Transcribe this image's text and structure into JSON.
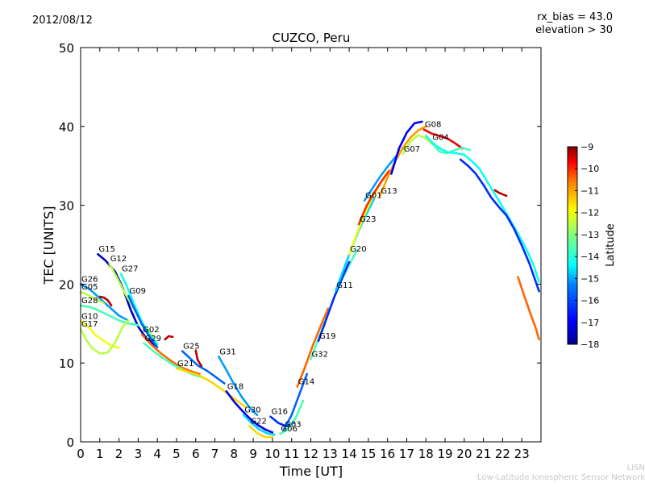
{
  "header": {
    "date": "2012/08/12",
    "rx_bias": "rx_bias = 43.0",
    "elevation": "elevation > 30"
  },
  "watermark": {
    "line1": "LISN",
    "line2": "Low-Latitude Ionospheric Sensor Network"
  },
  "chart_data": {
    "type": "scatter",
    "title": "CUZCO, Peru",
    "xlabel": "Time [UT]",
    "ylabel": "TEC [UNITS]",
    "xlim": [
      0,
      24
    ],
    "ylim": [
      0,
      50
    ],
    "xticks": [
      0,
      1,
      2,
      3,
      4,
      5,
      6,
      7,
      8,
      9,
      10,
      11,
      12,
      13,
      14,
      15,
      16,
      17,
      18,
      19,
      20,
      21,
      22,
      23
    ],
    "yticks": [
      0,
      10,
      20,
      30,
      40,
      50
    ],
    "colorbar": {
      "label": "Latitude",
      "range": [
        -18,
        -9
      ],
      "ticks": [
        -9,
        -10,
        -11,
        -12,
        -13,
        -14,
        -15,
        -16,
        -17,
        -18
      ],
      "colormap": [
        "#00008f",
        "#0000ff",
        "#0080ff",
        "#00ffff",
        "#80ff80",
        "#ffff00",
        "#ff8000",
        "#ff0000",
        "#800000"
      ]
    },
    "series": [
      {
        "name": "G15",
        "lat": -17.5,
        "x": [
          0.9,
          1.3,
          1.8,
          2.2,
          2.6,
          3.0,
          3.4,
          3.9
        ],
        "y": [
          23.8,
          23.0,
          21.6,
          19.5,
          16.8,
          14.6,
          13.2,
          12.2
        ]
      },
      {
        "name": "G12",
        "lat": -13.0,
        "x": [
          1.5,
          1.9,
          2.3,
          2.8,
          3.3,
          3.8
        ],
        "y": [
          22.6,
          20.8,
          18.9,
          16.8,
          14.8,
          13.3
        ]
      },
      {
        "name": "G27",
        "lat": -14.5,
        "x": [
          2.1,
          2.4,
          2.8,
          3.2,
          3.6,
          4.0
        ],
        "y": [
          21.3,
          19.8,
          17.4,
          15.2,
          13.6,
          12.4
        ]
      },
      {
        "name": "G09",
        "lat": -16.0,
        "x": [
          2.5,
          2.8,
          3.2,
          3.6,
          4.0
        ],
        "y": [
          18.5,
          16.9,
          14.9,
          13.3,
          12.0
        ]
      },
      {
        "name": "G26",
        "lat": -15.5,
        "x": [
          0.0,
          0.5,
          1.0,
          1.5,
          2.0,
          2.4
        ],
        "y": [
          20.0,
          19.3,
          18.2,
          17.1,
          16.0,
          15.5
        ]
      },
      {
        "name": "G05",
        "lat": -13.0,
        "x": [
          0.0,
          0.4,
          0.8,
          1.2
        ],
        "y": [
          19.0,
          18.6,
          18.1,
          17.6
        ]
      },
      {
        "name": "G28",
        "lat": -14.0,
        "x": [
          0.0,
          0.5,
          1.0,
          1.5,
          2.0,
          2.5,
          3.0
        ],
        "y": [
          17.3,
          17.1,
          16.6,
          16.0,
          15.4,
          15.0,
          14.8
        ]
      },
      {
        "name": "G10",
        "lat": -12.5,
        "x": [
          0.0,
          0.4,
          0.8,
          1.2,
          1.6,
          2.0
        ],
        "y": [
          15.3,
          14.6,
          13.5,
          12.8,
          12.2,
          11.9
        ]
      },
      {
        "name": "G17",
        "lat": -13.0,
        "x": [
          0.0,
          0.3,
          0.6,
          1.0,
          1.4,
          1.8,
          2.2,
          2.5
        ],
        "y": [
          14.3,
          12.9,
          11.9,
          11.2,
          11.3,
          12.6,
          14.6,
          15.4
        ]
      },
      {
        "name": "G02",
        "lat": -11.0,
        "x": [
          3.2,
          3.7,
          4.2,
          4.7,
          5.2,
          5.7,
          6.2
        ],
        "y": [
          13.6,
          12.3,
          11.2,
          10.3,
          9.5,
          9.0,
          8.6
        ]
      },
      {
        "name": "G29",
        "lat": -14.0,
        "x": [
          3.3,
          3.8,
          4.3,
          4.8,
          5.3,
          5.8,
          6.3
        ],
        "y": [
          12.5,
          11.5,
          10.6,
          9.8,
          9.2,
          8.6,
          8.2
        ]
      },
      {
        "name": "G25",
        "lat": -16.0,
        "x": [
          5.3,
          5.7,
          6.1,
          6.6,
          7.0,
          7.5
        ],
        "y": [
          11.5,
          10.6,
          9.7,
          9.0,
          8.3,
          7.4
        ]
      },
      {
        "name": "G21",
        "lat": -12.0,
        "x": [
          5.0,
          5.6,
          6.2,
          6.8,
          7.4,
          8.0,
          8.6
        ],
        "y": [
          9.3,
          8.9,
          8.4,
          7.6,
          6.6,
          5.5,
          4.4
        ]
      },
      {
        "name": "G31",
        "lat": -15.5,
        "x": [
          7.2,
          7.6,
          8.0,
          8.4,
          8.8,
          9.2
        ],
        "y": [
          10.8,
          9.1,
          7.3,
          5.7,
          4.4,
          3.4
        ]
      },
      {
        "name": "G18",
        "lat": -17.0,
        "x": [
          7.6,
          8.0,
          8.4,
          8.8,
          9.2,
          9.6,
          10.0
        ],
        "y": [
          6.4,
          5.1,
          4.0,
          3.0,
          2.2,
          1.6,
          1.2
        ]
      },
      {
        "name": "G30",
        "lat": -15.0,
        "x": [
          8.5,
          8.9,
          9.3,
          9.7,
          10.1
        ],
        "y": [
          3.4,
          2.4,
          1.6,
          1.1,
          0.9
        ]
      },
      {
        "name": "G22",
        "lat": -12.0,
        "x": [
          8.8,
          9.2,
          9.6,
          10.0
        ],
        "y": [
          2.0,
          1.1,
          0.6,
          0.6
        ]
      },
      {
        "name": "G16",
        "lat": -16.5,
        "x": [
          9.9,
          10.3,
          10.7,
          11.1
        ],
        "y": [
          3.2,
          2.4,
          2.0,
          2.4
        ]
      },
      {
        "name": "G06",
        "lat": -14.0,
        "x": [
          10.4,
          10.8,
          11.2,
          11.6
        ],
        "y": [
          1.0,
          1.6,
          3.0,
          5.2
        ]
      },
      {
        "name": "G03",
        "lat": -16.0,
        "x": [
          10.6,
          11.0,
          11.4,
          11.8
        ],
        "y": [
          1.6,
          3.4,
          6.0,
          8.6
        ]
      },
      {
        "name": "G14",
        "lat": -11.0,
        "x": [
          11.3,
          11.7,
          12.1,
          12.5,
          12.9
        ],
        "y": [
          7.0,
          9.5,
          12.2,
          14.6,
          16.9
        ]
      },
      {
        "name": "G32",
        "lat": -14.0,
        "x": [
          12.0,
          12.4,
          12.8,
          13.2,
          13.6,
          14.0,
          14.4
        ],
        "y": [
          10.5,
          13.1,
          15.6,
          18.2,
          20.5,
          22.4,
          24.3
        ]
      },
      {
        "name": "G19",
        "lat": -16.5,
        "x": [
          12.4,
          12.8,
          13.2,
          13.6,
          14.0
        ],
        "y": [
          12.8,
          15.5,
          18.2,
          20.6,
          22.8
        ]
      },
      {
        "name": "G11",
        "lat": -15.0,
        "x": [
          13.3,
          13.7,
          14.1,
          14.5,
          14.9,
          15.3
        ],
        "y": [
          19.2,
          21.8,
          24.4,
          26.8,
          28.9,
          30.8
        ]
      },
      {
        "name": "G20",
        "lat": -12.5,
        "x": [
          14.0,
          14.4,
          14.8,
          15.2,
          15.6,
          16.0
        ],
        "y": [
          23.8,
          26.4,
          28.8,
          30.9,
          32.7,
          34.3
        ]
      },
      {
        "name": "G23",
        "lat": -10.5,
        "x": [
          14.5,
          14.9,
          15.3,
          15.7,
          16.1
        ],
        "y": [
          27.6,
          29.9,
          31.6,
          33.1,
          34.4
        ]
      },
      {
        "name": "G01",
        "lat": -15.5,
        "x": [
          14.8,
          15.2,
          15.6,
          16.0,
          16.4,
          16.8
        ],
        "y": [
          30.6,
          32.1,
          33.6,
          34.9,
          36.1,
          37.2
        ]
      },
      {
        "name": "G13",
        "lat": -11.5,
        "x": [
          15.6,
          16.0,
          16.4,
          16.8,
          17.2,
          17.6,
          18.0
        ],
        "y": [
          31.2,
          33.5,
          35.6,
          37.3,
          38.6,
          39.5,
          40.0
        ]
      },
      {
        "name": "G07",
        "lat": -13.0,
        "x": [
          16.8,
          17.2,
          17.6,
          18.0,
          18.4,
          18.8
        ],
        "y": [
          36.5,
          38.1,
          38.9,
          38.5,
          37.6,
          37.1
        ]
      },
      {
        "name": "G08",
        "lat": -10.0,
        "x": [
          17.9,
          18.3,
          18.7,
          19.1,
          19.5,
          19.9
        ],
        "y": [
          39.6,
          39.1,
          38.8,
          38.5,
          37.9,
          37.2
        ]
      },
      {
        "name": "G04",
        "lat": -14.0,
        "x": [
          18.3,
          18.7,
          19.1,
          19.5,
          19.9,
          20.3
        ],
        "y": [
          38.0,
          36.8,
          36.6,
          37.0,
          37.3,
          37.0
        ]
      },
      {
        "name": "",
        "lat": -17.0,
        "x": [
          16.2,
          16.6,
          17.0,
          17.4,
          17.8
        ],
        "y": [
          34.0,
          37.2,
          39.2,
          40.4,
          40.6
        ]
      },
      {
        "name": "",
        "lat": -14.5,
        "x": [
          18.0,
          18.4,
          18.8,
          19.2,
          19.6,
          20.0,
          20.4,
          20.8,
          21.2,
          21.6,
          22.0,
          22.4,
          22.8,
          23.2,
          23.6,
          23.9
        ],
        "y": [
          38.8,
          37.8,
          37.1,
          36.7,
          36.6,
          36.4,
          35.6,
          34.6,
          33.0,
          31.4,
          29.8,
          28.1,
          26.4,
          24.6,
          22.5,
          20.3
        ]
      },
      {
        "name": "",
        "lat": -16.5,
        "x": [
          19.8,
          20.2,
          20.6,
          21.0,
          21.4,
          21.8,
          22.2,
          22.6,
          23.0,
          23.4,
          23.9
        ],
        "y": [
          35.8,
          35.0,
          34.0,
          32.6,
          31.0,
          29.8,
          28.7,
          27.0,
          24.9,
          22.6,
          19.1
        ]
      },
      {
        "name": "",
        "lat": -11.0,
        "x": [
          22.8,
          23.1,
          23.4,
          23.7,
          23.9
        ],
        "y": [
          20.9,
          18.7,
          16.6,
          14.6,
          13.0
        ]
      },
      {
        "name": "",
        "lat": -9.5,
        "x": [
          21.6,
          21.8,
          22.0,
          22.2
        ],
        "y": [
          31.9,
          31.6,
          31.4,
          31.2
        ]
      },
      {
        "name": "",
        "lat": -9.5,
        "x": [
          1.0,
          1.2,
          1.4,
          1.6
        ],
        "y": [
          18.4,
          18.3,
          18.0,
          17.3
        ]
      },
      {
        "name": "",
        "lat": -9.5,
        "x": [
          4.4,
          4.6,
          4.8
        ],
        "y": [
          13.0,
          13.4,
          13.3
        ]
      },
      {
        "name": "",
        "lat": -9.5,
        "x": [
          6.0,
          6.1,
          6.3
        ],
        "y": [
          11.6,
          10.4,
          9.6
        ]
      }
    ]
  }
}
